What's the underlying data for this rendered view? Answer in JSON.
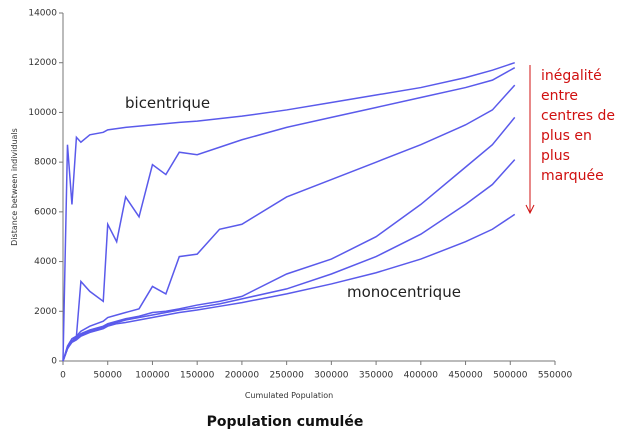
{
  "chart_data": {
    "type": "line",
    "ylabel": "Distance between individuals",
    "xlabel": "Cumulated Population",
    "caption": "Population cumulée",
    "annotations": [
      "bicentrique",
      "monocentrique"
    ],
    "note_lines": [
      "inégalité",
      "entre",
      "centres de",
      "plus en",
      "plus",
      "marquée"
    ],
    "note_color": "#d01010",
    "xlim": [
      0,
      550000
    ],
    "xticks": [
      0,
      50000,
      100000,
      150000,
      200000,
      250000,
      300000,
      350000,
      400000,
      450000,
      500000,
      550000
    ],
    "ylim": [
      0,
      14000
    ],
    "yticks": [
      0,
      2000,
      4000,
      6000,
      8000,
      10000,
      12000,
      14000
    ],
    "x": [
      0,
      5000,
      10000,
      15000,
      20000,
      30000,
      45000,
      50000,
      60000,
      70000,
      85000,
      100000,
      115000,
      130000,
      150000,
      175000,
      200000,
      250000,
      300000,
      350000,
      400000,
      450000,
      480000,
      505000
    ],
    "series": [
      {
        "color": "#5a5aeb",
        "values": [
          0,
          8700,
          6300,
          9000,
          8800,
          9100,
          9200,
          9300,
          9350,
          9400,
          9450,
          9500,
          9550,
          9600,
          9650,
          9750,
          9850,
          10100,
          10400,
          10700,
          11000,
          11400,
          11700,
          12000
        ]
      },
      {
        "color": "#5a5aeb",
        "values": [
          0,
          600,
          900,
          1000,
          3200,
          2800,
          2400,
          5500,
          4800,
          6600,
          5800,
          7900,
          7500,
          8400,
          8300,
          8600,
          8900,
          9400,
          9800,
          10200,
          10600,
          11000,
          11300,
          11800
        ]
      },
      {
        "color": "#5a5aeb",
        "values": [
          0,
          500,
          800,
          1000,
          1200,
          1400,
          1600,
          1750,
          1850,
          1950,
          2100,
          3000,
          2700,
          4200,
          4300,
          5300,
          5500,
          6600,
          7300,
          8000,
          8700,
          9500,
          10100,
          11100
        ]
      },
      {
        "color": "#5a5aeb",
        "values": [
          0,
          500,
          800,
          950,
          1100,
          1250,
          1400,
          1500,
          1600,
          1700,
          1800,
          1950,
          2000,
          2100,
          2250,
          2400,
          2600,
          3500,
          4100,
          5000,
          6300,
          7800,
          8700,
          9800
        ]
      },
      {
        "color": "#5a5aeb",
        "values": [
          0,
          500,
          800,
          900,
          1050,
          1200,
          1350,
          1450,
          1550,
          1650,
          1750,
          1850,
          1950,
          2050,
          2150,
          2300,
          2500,
          2900,
          3500,
          4200,
          5100,
          6300,
          7100,
          8100
        ]
      },
      {
        "color": "#5a5aeb",
        "values": [
          0,
          500,
          750,
          850,
          1000,
          1150,
          1300,
          1400,
          1500,
          1550,
          1650,
          1750,
          1850,
          1950,
          2050,
          2200,
          2350,
          2700,
          3100,
          3550,
          4100,
          4800,
          5300,
          5900
        ]
      }
    ]
  }
}
